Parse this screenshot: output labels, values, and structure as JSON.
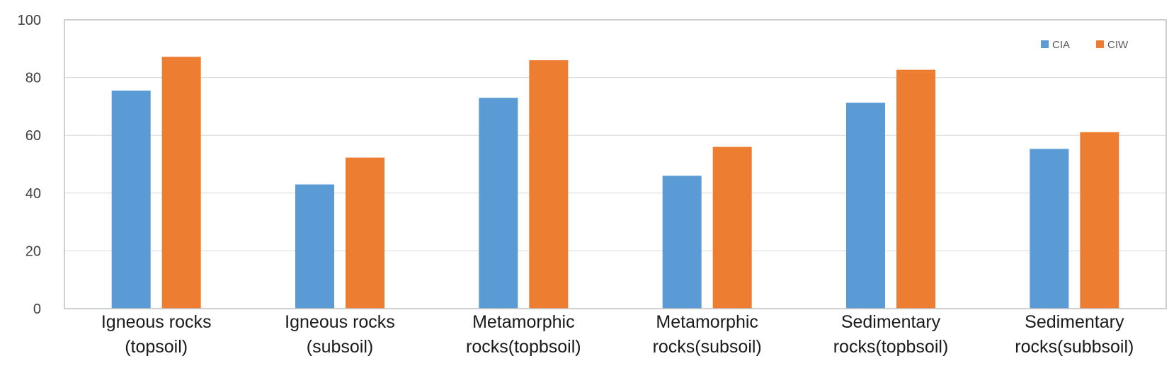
{
  "chart_data": {
    "type": "bar",
    "title": "",
    "xlabel": "",
    "ylabel": "",
    "ylim": [
      0,
      100
    ],
    "yticks": [
      0,
      20,
      40,
      60,
      80,
      100
    ],
    "grid": true,
    "legend_position": "top-right",
    "categories": [
      [
        "Igneous rocks",
        "(topsoil)"
      ],
      [
        "Igneous rocks",
        "(subsoil)"
      ],
      [
        "Metamorphic",
        "rocks(topbsoil)"
      ],
      [
        "Metamorphic",
        "rocks(subsoil)"
      ],
      [
        "Sedimentary",
        "rocks(topbsoil)"
      ],
      [
        "Sedimentary",
        "rocks(subbsoil)"
      ]
    ],
    "series": [
      {
        "name": "CIA",
        "color": "#5b9bd5",
        "values": [
          75.5,
          43,
          73,
          46,
          71.3,
          55.3
        ]
      },
      {
        "name": "CIW",
        "color": "#ed7d31",
        "values": [
          87.2,
          52.3,
          86,
          56,
          82.7,
          61.1
        ]
      }
    ]
  }
}
